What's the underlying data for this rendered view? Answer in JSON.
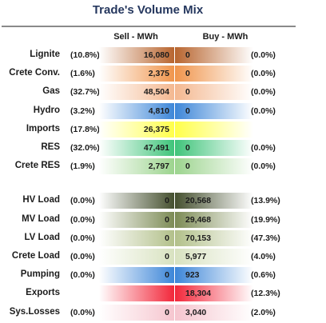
{
  "title": "Trade's Volume Mix",
  "headers": {
    "sell": "Sell - MWh",
    "buy": "Buy - MWh"
  },
  "chart_data": {
    "type": "table",
    "title": "Trade's Volume Mix",
    "columns": [
      "Sell - MWh",
      "Buy - MWh"
    ],
    "rows": [
      {
        "label": "Lignite",
        "sell_pct": "(10.8%)",
        "sell": "16,080",
        "buy": "0",
        "buy_pct": "(0.0%)",
        "sell_color": "#b8652f",
        "buy_color": "#b8652f",
        "group": 1
      },
      {
        "label": "Crete Conv.",
        "sell_pct": "(1.6%)",
        "sell": "2,375",
        "buy": "0",
        "buy_pct": "(0.0%)",
        "sell_color": "#f0954c",
        "buy_color": "#f0954c",
        "group": 1
      },
      {
        "label": "Gas",
        "sell_pct": "(32.7%)",
        "sell": "48,504",
        "buy": "0",
        "buy_pct": "(0.0%)",
        "sell_color": "#f4b890",
        "buy_color": "#f4b890",
        "group": 1
      },
      {
        "label": "Hydro",
        "sell_pct": "(3.2%)",
        "sell": "4,810",
        "buy": "0",
        "buy_pct": "(0.0%)",
        "sell_color": "#3d86d8",
        "buy_color": "#3d86d8",
        "group": 1
      },
      {
        "label": "Imports",
        "sell_pct": "(17.8%)",
        "sell": "26,375",
        "buy": "",
        "buy_pct": "",
        "sell_color": "#ffff4a",
        "buy_color": "#ffff4a",
        "group": 1
      },
      {
        "label": "RES",
        "sell_pct": "(32.0%)",
        "sell": "47,491",
        "buy": "0",
        "buy_pct": "(0.0%)",
        "sell_color": "#3fc47a",
        "buy_color": "#3fc47a",
        "group": 1
      },
      {
        "label": "Crete RES",
        "sell_pct": "(1.9%)",
        "sell": "2,797",
        "buy": "0",
        "buy_pct": "(0.0%)",
        "sell_color": "#9cd48e",
        "buy_color": "#9cd48e",
        "group": 1
      },
      {
        "label": "HV Load",
        "sell_pct": "(0.0%)",
        "sell": "0",
        "buy": "20,568",
        "buy_pct": "(13.9%)",
        "sell_color": "#45502f",
        "buy_color": "#45502f",
        "group": 2
      },
      {
        "label": "MV Load",
        "sell_pct": "(0.0%)",
        "sell": "0",
        "buy": "29,468",
        "buy_pct": "(19.9%)",
        "sell_color": "#7c8b55",
        "buy_color": "#7c8b55",
        "group": 2
      },
      {
        "label": "LV Load",
        "sell_pct": "(0.0%)",
        "sell": "0",
        "buy": "70,153",
        "buy_pct": "(47.3%)",
        "sell_color": "#b2c08a",
        "buy_color": "#b2c08a",
        "group": 2
      },
      {
        "label": "Crete Load",
        "sell_pct": "(0.0%)",
        "sell": "0",
        "buy": "5,977",
        "buy_pct": "(4.0%)",
        "sell_color": "#d8e2c0",
        "buy_color": "#d8e2c0",
        "group": 2
      },
      {
        "label": "Pumping",
        "sell_pct": "(0.0%)",
        "sell": "0",
        "buy": "923",
        "buy_pct": "(0.6%)",
        "sell_color": "#3d86d8",
        "buy_color": "#3d86d8",
        "group": 2
      },
      {
        "label": "Exports",
        "sell_pct": "",
        "sell": "",
        "buy": "18,304",
        "buy_pct": "(12.3%)",
        "sell_color": "#f2273a",
        "buy_color": "#f2273a",
        "group": 2
      },
      {
        "label": "Sys.Losses",
        "sell_pct": "(0.0%)",
        "sell": "0",
        "buy": "3,040",
        "buy_pct": "(2.0%)",
        "sell_color": "#f6c6cf",
        "buy_color": "#f6c6cf",
        "group": 2
      }
    ]
  }
}
